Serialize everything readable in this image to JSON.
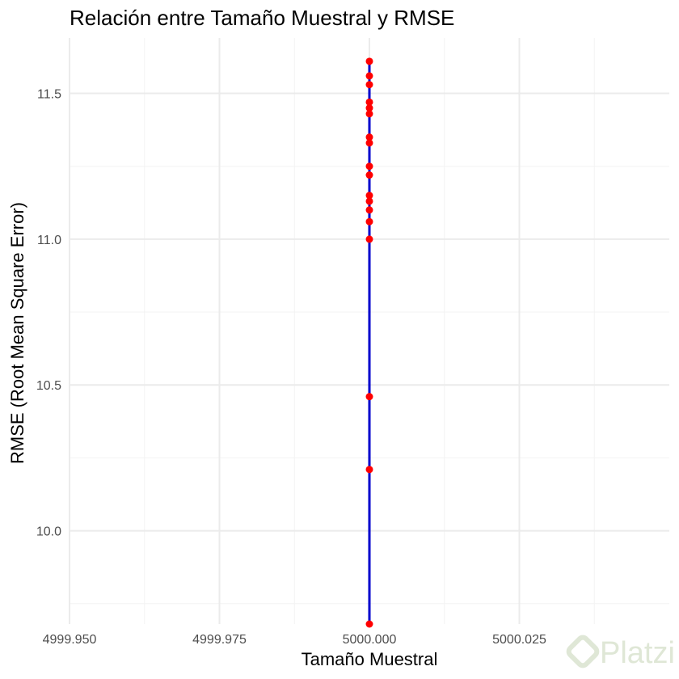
{
  "chart_data": {
    "type": "line",
    "title": "Relación entre Tamaño Muestral y RMSE",
    "xlabel": "Tamaño Muestral",
    "ylabel": "RMSE (Root Mean Square Error)",
    "xlim": [
      4999.95,
      5000.05
    ],
    "ylim": [
      9.68,
      11.69
    ],
    "x_ticks": [
      4999.95,
      4999.975,
      5000.0,
      5000.025
    ],
    "x_tick_labels": [
      "4999.950",
      "4999.975",
      "5000.000",
      "5000.025"
    ],
    "y_ticks": [
      10.0,
      10.5,
      11.0,
      11.5
    ],
    "y_tick_labels": [
      "10.0",
      "10.5",
      "11.0",
      "11.5"
    ],
    "grid": true,
    "series": [
      {
        "line_color": "#0000cd",
        "point_color": "#ff0000",
        "points": [
          {
            "x": 5000,
            "y": 11.61
          },
          {
            "x": 5000,
            "y": 11.56
          },
          {
            "x": 5000,
            "y": 11.53
          },
          {
            "x": 5000,
            "y": 11.47
          },
          {
            "x": 5000,
            "y": 11.45
          },
          {
            "x": 5000,
            "y": 11.43
          },
          {
            "x": 5000,
            "y": 11.35
          },
          {
            "x": 5000,
            "y": 11.33
          },
          {
            "x": 5000,
            "y": 11.25
          },
          {
            "x": 5000,
            "y": 11.22
          },
          {
            "x": 5000,
            "y": 11.15
          },
          {
            "x": 5000,
            "y": 11.13
          },
          {
            "x": 5000,
            "y": 11.1
          },
          {
            "x": 5000,
            "y": 11.06
          },
          {
            "x": 5000,
            "y": 11.0
          },
          {
            "x": 5000,
            "y": 10.46
          },
          {
            "x": 5000,
            "y": 10.21
          },
          {
            "x": 5000,
            "y": 9.68
          }
        ]
      }
    ]
  },
  "watermark": {
    "text": "Platzi",
    "color": "#dfe7d6"
  }
}
